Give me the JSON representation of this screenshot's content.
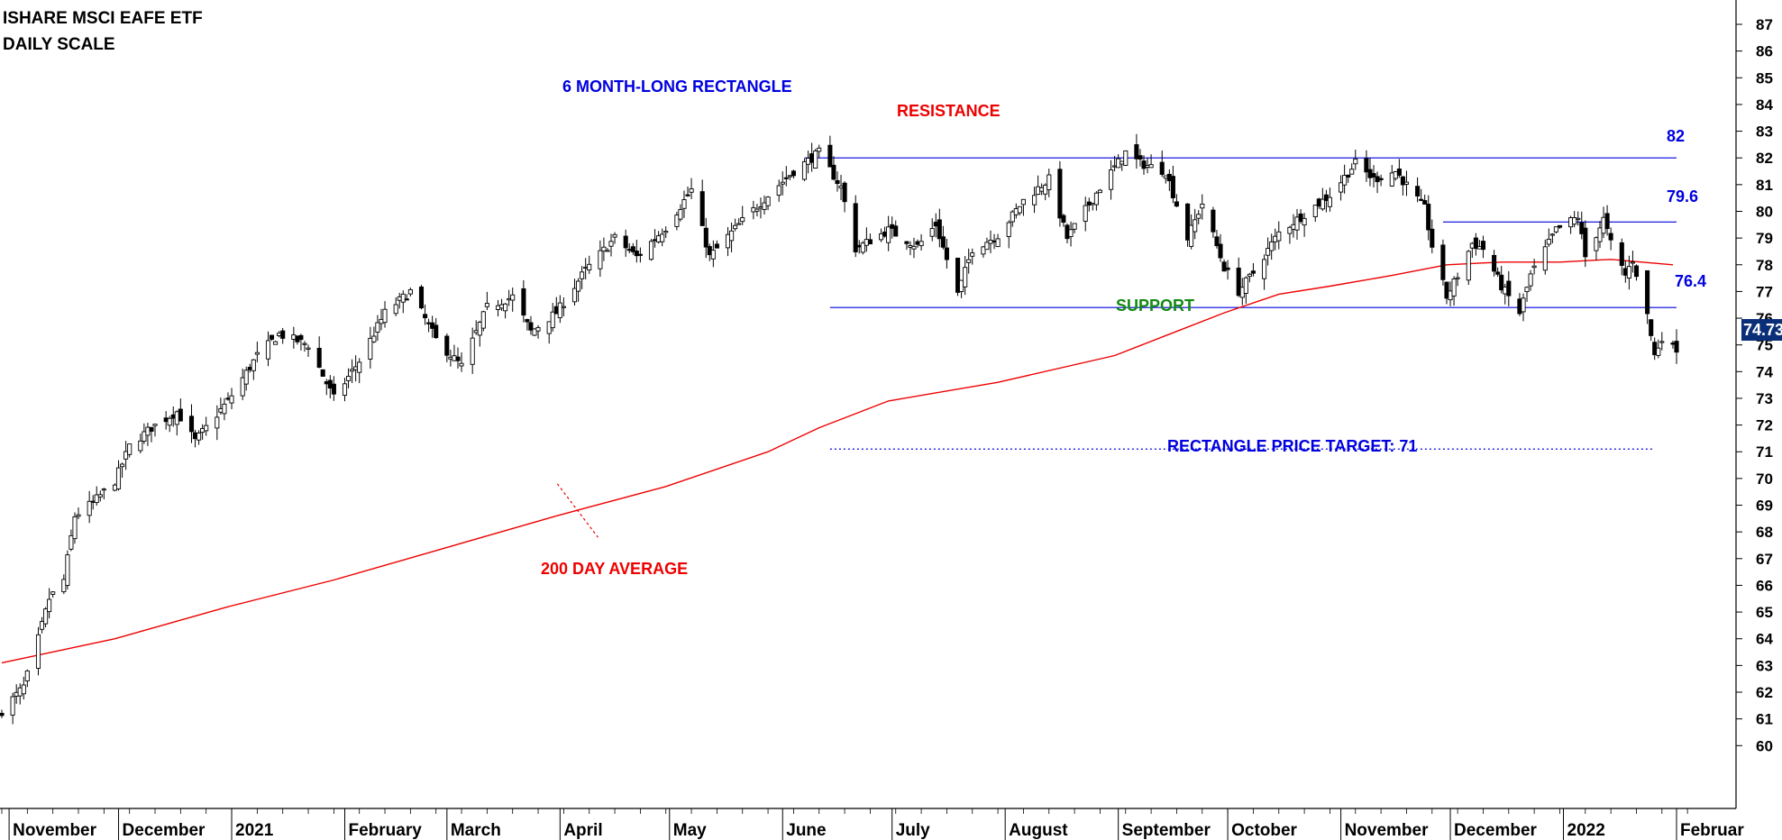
{
  "chart_data": {
    "type": "candlestick",
    "title": "ISHARE MSCI EAFE ETF",
    "subtitle": "DAILY SCALE",
    "ylim": [
      59,
      88
    ],
    "y_axis_side": "right",
    "y_ticks": [
      60,
      61,
      62,
      63,
      64,
      65,
      66,
      67,
      68,
      69,
      70,
      71,
      72,
      73,
      74,
      75,
      76,
      77,
      78,
      79,
      80,
      81,
      82,
      83,
      84,
      85,
      86,
      87
    ],
    "x_ticks": [
      "November",
      "December",
      "2021",
      "February",
      "March",
      "April",
      "May",
      "June",
      "July",
      "August",
      "September",
      "October",
      "November",
      "December",
      "2022",
      "Februar"
    ],
    "last_price": "74.73",
    "anchors_close": [
      [
        "2020-10-30",
        61.3
      ],
      [
        "2020-11-05",
        62.2
      ],
      [
        "2020-11-09",
        64.0
      ],
      [
        "2020-11-12",
        65.5
      ],
      [
        "2020-11-16",
        66.2
      ],
      [
        "2020-11-19",
        68.6
      ],
      [
        "2020-11-24",
        69.1
      ],
      [
        "2020-11-30",
        69.9
      ],
      [
        "2020-12-04",
        71.2
      ],
      [
        "2020-12-10",
        71.9
      ],
      [
        "2020-12-17",
        72.5
      ],
      [
        "2020-12-22",
        71.4
      ],
      [
        "2020-12-31",
        72.9
      ],
      [
        "2021-01-08",
        74.6
      ],
      [
        "2021-01-14",
        75.4
      ],
      [
        "2021-01-22",
        75.0
      ],
      [
        "2021-01-29",
        73.0
      ],
      [
        "2021-02-05",
        74.4
      ],
      [
        "2021-02-12",
        76.2
      ],
      [
        "2021-02-19",
        77.0
      ],
      [
        "2021-02-26",
        75.2
      ],
      [
        "2021-03-05",
        74.2
      ],
      [
        "2021-03-12",
        76.4
      ],
      [
        "2021-03-19",
        76.8
      ],
      [
        "2021-03-24",
        75.5
      ],
      [
        "2021-03-31",
        76.2
      ],
      [
        "2021-04-08",
        77.8
      ],
      [
        "2021-04-16",
        79.0
      ],
      [
        "2021-04-22",
        78.3
      ],
      [
        "2021-04-30",
        79.4
      ],
      [
        "2021-05-07",
        80.8
      ],
      [
        "2021-05-12",
        78.3
      ],
      [
        "2021-05-20",
        79.5
      ],
      [
        "2021-05-28",
        80.6
      ],
      [
        "2021-06-04",
        81.5
      ],
      [
        "2021-06-11",
        82.2
      ],
      [
        "2021-06-17",
        80.9
      ],
      [
        "2021-06-21",
        78.6
      ],
      [
        "2021-06-30",
        79.3
      ],
      [
        "2021-07-08",
        78.7
      ],
      [
        "2021-07-13",
        79.5
      ],
      [
        "2021-07-19",
        76.9
      ],
      [
        "2021-07-23",
        78.6
      ],
      [
        "2021-07-30",
        79.1
      ],
      [
        "2021-08-06",
        80.4
      ],
      [
        "2021-08-13",
        81.2
      ],
      [
        "2021-08-18",
        79.0
      ],
      [
        "2021-08-27",
        80.9
      ],
      [
        "2021-09-03",
        82.2
      ],
      [
        "2021-09-07",
        81.8
      ],
      [
        "2021-09-14",
        81.5
      ],
      [
        "2021-09-20",
        79.0
      ],
      [
        "2021-09-24",
        80.3
      ],
      [
        "2021-09-30",
        77.9
      ],
      [
        "2021-10-04",
        77.0
      ],
      [
        "2021-10-08",
        77.7
      ],
      [
        "2021-10-15",
        79.2
      ],
      [
        "2021-10-22",
        79.9
      ],
      [
        "2021-10-29",
        80.6
      ],
      [
        "2021-11-05",
        81.8
      ],
      [
        "2021-11-10",
        81.2
      ],
      [
        "2021-11-16",
        81.5
      ],
      [
        "2021-11-24",
        80.1
      ],
      [
        "2021-11-26",
        78.7
      ],
      [
        "2021-11-30",
        76.8
      ],
      [
        "2021-12-03",
        77.6
      ],
      [
        "2021-12-07",
        78.8
      ],
      [
        "2021-12-10",
        78.6
      ],
      [
        "2021-12-15",
        77.2
      ],
      [
        "2021-12-20",
        76.2
      ],
      [
        "2021-12-23",
        77.6
      ],
      [
        "2021-12-30",
        79.3
      ],
      [
        "2022-01-05",
        79.8
      ],
      [
        "2022-01-07",
        78.3
      ],
      [
        "2022-01-12",
        79.7
      ],
      [
        "2022-01-14",
        78.8
      ],
      [
        "2022-01-18",
        77.6
      ],
      [
        "2022-01-20",
        78.2
      ],
      [
        "2022-01-24",
        76.1
      ],
      [
        "2022-01-26",
        74.6
      ],
      [
        "2022-01-28",
        75.3
      ],
      [
        "2022-02-01",
        74.73
      ]
    ],
    "series": [
      {
        "name": "200 DAY AVERAGE",
        "color": "#ee0000",
        "points": [
          [
            "2020-10-30",
            63.1
          ],
          [
            "2020-11-30",
            64.0
          ],
          [
            "2020-12-31",
            65.2
          ],
          [
            "2021-01-29",
            66.2
          ],
          [
            "2021-02-26",
            67.3
          ],
          [
            "2021-03-31",
            68.6
          ],
          [
            "2021-04-30",
            69.7
          ],
          [
            "2021-05-28",
            71.0
          ],
          [
            "2021-06-11",
            71.9
          ],
          [
            "2021-06-30",
            72.9
          ],
          [
            "2021-07-30",
            73.6
          ],
          [
            "2021-08-31",
            74.6
          ],
          [
            "2021-09-15",
            75.4
          ],
          [
            "2021-09-30",
            76.2
          ],
          [
            "2021-10-15",
            76.9
          ],
          [
            "2021-10-29",
            77.2
          ],
          [
            "2021-11-15",
            77.6
          ],
          [
            "2021-11-30",
            78.0
          ],
          [
            "2021-12-15",
            78.1
          ],
          [
            "2021-12-31",
            78.1
          ],
          [
            "2022-01-14",
            78.2
          ],
          [
            "2022-01-31",
            78.0
          ]
        ]
      }
    ],
    "annotations": {
      "pattern": "6 MONTH-LONG RECTANGLE",
      "resistance": "RESISTANCE",
      "support": "SUPPORT",
      "ma_label": "200 DAY AVERAGE",
      "target": "RECTANGLE PRICE TARGET: 71"
    },
    "levels": [
      {
        "value": 82,
        "label": "82",
        "from": "2021-06-07",
        "to": "2022-02-01",
        "style": "solid"
      },
      {
        "value": 79.6,
        "label": "79.6",
        "from": "2021-11-29",
        "to": "2022-02-01",
        "style": "solid"
      },
      {
        "value": 76.4,
        "label": "76.4",
        "from": "2021-06-14",
        "to": "2022-02-01",
        "style": "solid"
      },
      {
        "value": 71.1,
        "label": "",
        "from": "2021-06-14",
        "to": "2022-01-26",
        "style": "dotted"
      }
    ],
    "colors": {
      "candle_up": "#ffffff",
      "candle_down": "#000000",
      "levels": "#0000e0",
      "ma": "#ee0000"
    }
  }
}
